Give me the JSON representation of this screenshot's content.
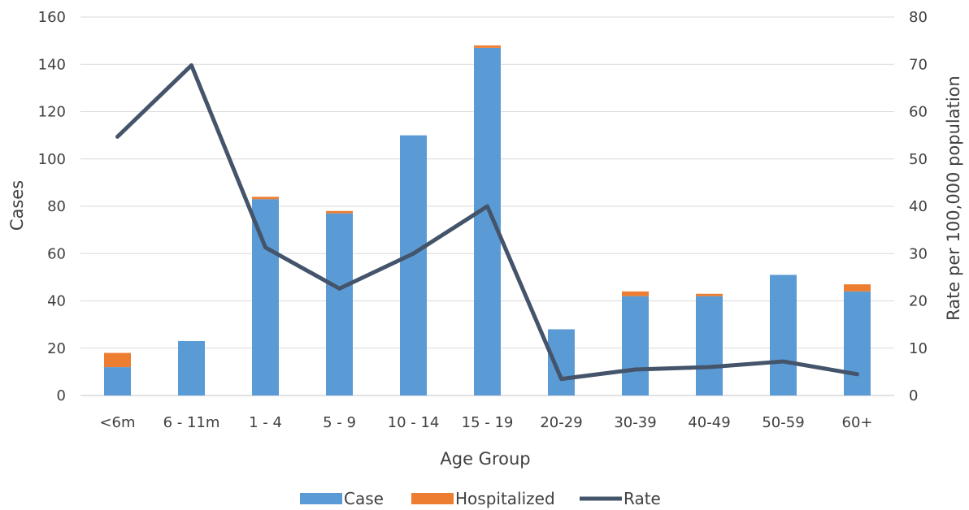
{
  "chart_data": {
    "type": "bar",
    "stacked": true,
    "categories": [
      "<6m",
      "6 - 11m",
      "1 - 4",
      "5 - 9",
      "10 - 14",
      "15 - 19",
      "20-29",
      "30-39",
      "40-49",
      "50-59",
      "60+"
    ],
    "series": [
      {
        "name": "Case",
        "type": "bar",
        "axis": "left",
        "color": "#5b9bd5",
        "values": [
          12,
          23,
          83,
          77,
          110,
          147,
          28,
          42,
          42,
          51,
          44
        ]
      },
      {
        "name": "Hospitalized",
        "type": "bar",
        "axis": "left",
        "color": "#ed7d31",
        "values": [
          6,
          0,
          1,
          1,
          0,
          1,
          0,
          2,
          1,
          0,
          3
        ]
      },
      {
        "name": "Rate",
        "type": "line",
        "axis": "right",
        "color": "#44546a",
        "values": [
          54.7,
          69.8,
          31.3,
          22.6,
          30.0,
          40.0,
          3.5,
          5.5,
          6.0,
          7.2,
          4.5
        ]
      }
    ],
    "xlabel": "Age Group",
    "ylabel": "Cases",
    "y2label": "Rate per 100,000 population",
    "ylim": [
      0,
      160
    ],
    "y2lim": [
      0,
      80
    ],
    "yticks": [
      0,
      20,
      40,
      60,
      80,
      100,
      120,
      140,
      160
    ],
    "y2ticks": [
      0,
      10,
      20,
      30,
      40,
      50,
      60,
      70,
      80
    ],
    "grid": true,
    "gridline_color": "#d9d9d9",
    "legend_position": "bottom"
  }
}
